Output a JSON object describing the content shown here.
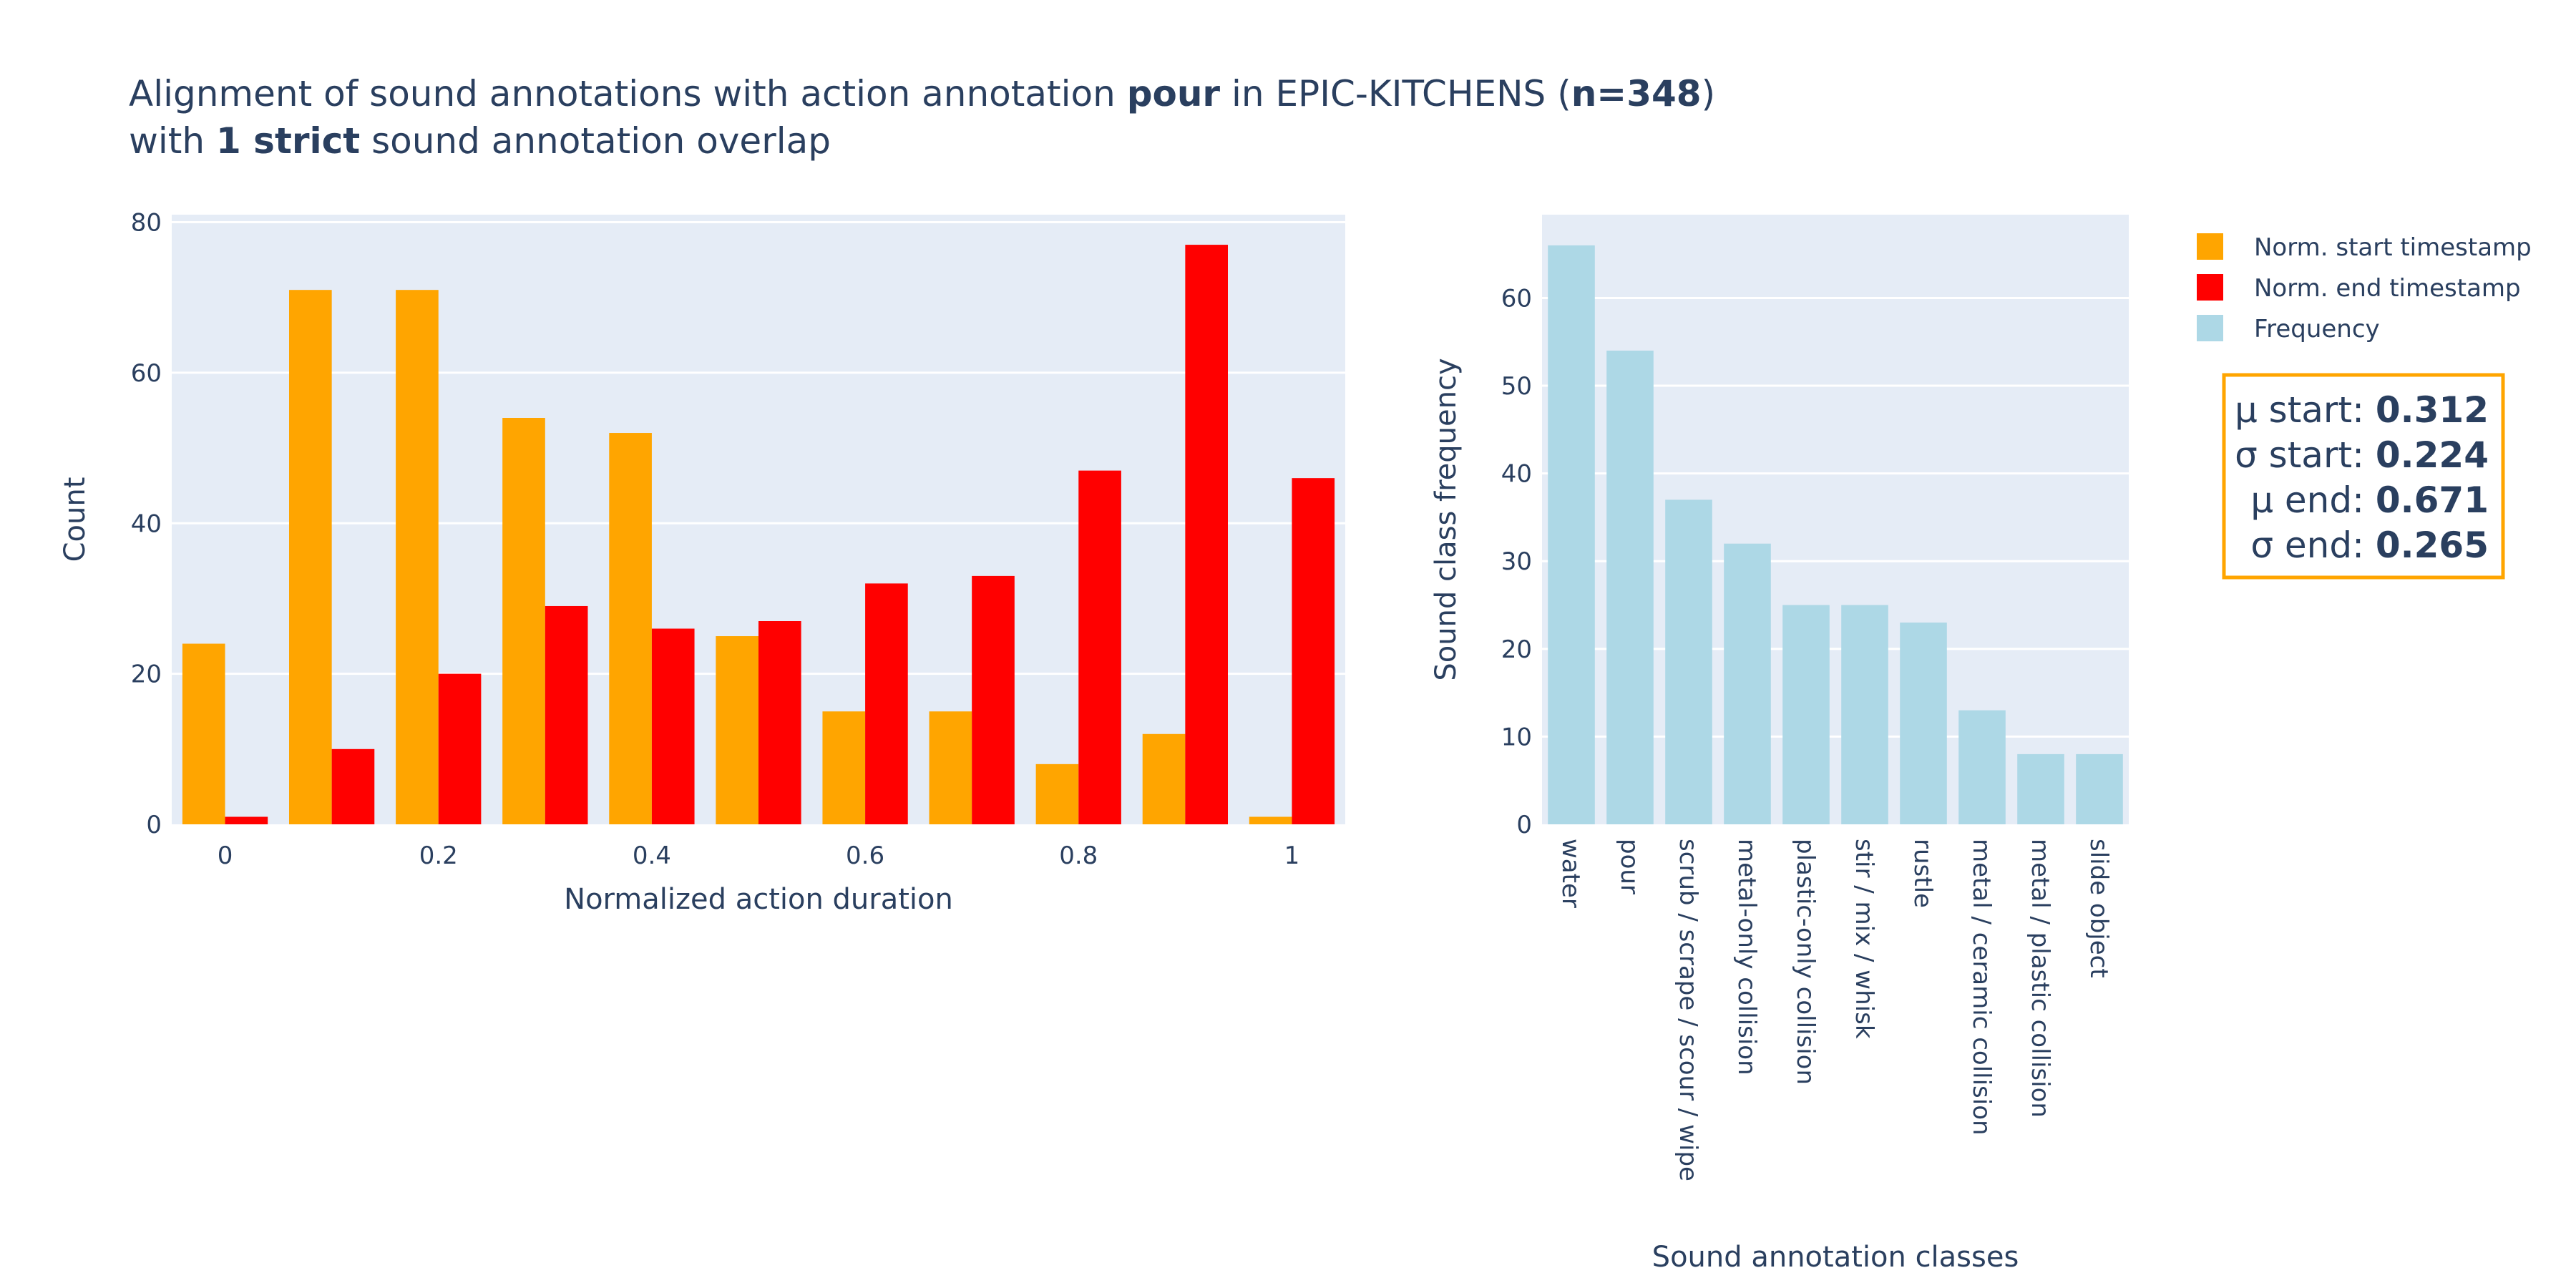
{
  "title": {
    "line1_parts": [
      {
        "text": "Alignment of sound annotations with action annotation ",
        "bold": false
      },
      {
        "text": "pour",
        "bold": true
      },
      {
        "text": " in EPIC-KITCHENS (",
        "bold": false
      },
      {
        "text": "n=348",
        "bold": true
      },
      {
        "text": ")",
        "bold": false
      }
    ],
    "line2_parts": [
      {
        "text": "with ",
        "bold": false
      },
      {
        "text": "1 strict",
        "bold": true
      },
      {
        "text": " sound annotation overlap",
        "bold": false
      }
    ]
  },
  "colors": {
    "start": "#FFA500",
    "end": "#FF0000",
    "frequency": "#ADD8E6",
    "plot_bg": "#E5ECF6",
    "grid": "#ffffff",
    "text": "#2a3f5f",
    "stats_border": "#FFA500"
  },
  "legend": {
    "items": [
      {
        "label": "Norm. start timestamp",
        "color": "#FFA500"
      },
      {
        "label": "Norm. end timestamp",
        "color": "#FF0000"
      },
      {
        "label": "Frequency",
        "color": "#ADD8E6"
      }
    ]
  },
  "stats_box": {
    "lines": [
      {
        "label": "μ start: ",
        "value": "0.312"
      },
      {
        "label": "σ start: ",
        "value": "0.224"
      },
      {
        "label": "μ end: ",
        "value": "0.671"
      },
      {
        "label": "σ end: ",
        "value": "0.265"
      }
    ]
  },
  "chart_data": [
    {
      "type": "bar",
      "barmode": "group",
      "x": [
        0,
        0.1,
        0.2,
        0.3,
        0.4,
        0.5,
        0.6,
        0.7,
        0.8,
        0.9,
        1.0
      ],
      "series": [
        {
          "name": "Norm. start timestamp",
          "color": "#FFA500",
          "values": [
            24,
            71,
            71,
            54,
            52,
            25,
            15,
            15,
            8,
            12,
            1
          ]
        },
        {
          "name": "Norm. end timestamp",
          "color": "#FF0000",
          "values": [
            1,
            10,
            20,
            29,
            26,
            27,
            32,
            33,
            47,
            77,
            46
          ]
        }
      ],
      "xlabel": "Normalized action duration",
      "ylabel": "Count",
      "xticks": [
        0,
        0.2,
        0.4,
        0.6,
        0.8,
        1
      ],
      "xtick_labels": [
        "0",
        "0.2",
        "0.4",
        "0.6",
        "0.8",
        "1"
      ],
      "yticks": [
        0,
        20,
        40,
        60,
        80
      ],
      "ylim": [
        0,
        81
      ],
      "xlim": [
        -0.05,
        1.05
      ],
      "grid": true
    },
    {
      "type": "bar",
      "categories": [
        "water",
        "pour",
        "scrub / scrape / scour / wipe",
        "metal-only collision",
        "plastic-only collision",
        "stir / mix / whisk",
        "rustle",
        "metal / ceramic collision",
        "metal / plastic collision",
        "slide object"
      ],
      "series": [
        {
          "name": "Frequency",
          "color": "#ADD8E6",
          "values": [
            66,
            54,
            37,
            32,
            25,
            25,
            23,
            13,
            8,
            8
          ]
        }
      ],
      "xlabel": "Sound annotation classes",
      "ylabel": "Sound class frequency",
      "yticks": [
        0,
        10,
        20,
        30,
        40,
        50,
        60
      ],
      "ylim": [
        0,
        69.5
      ],
      "grid": true
    }
  ]
}
